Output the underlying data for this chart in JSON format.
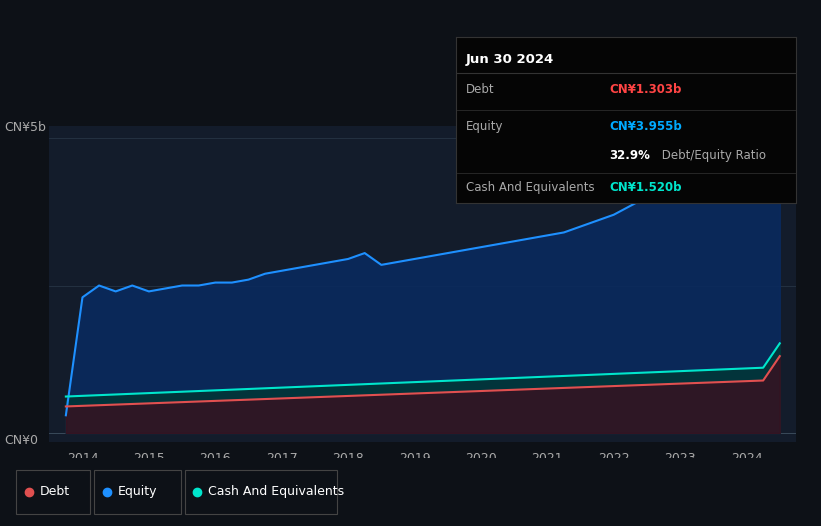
{
  "bg_color": "#0d1117",
  "plot_bg_color": "#131c2b",
  "title": "Jun 30 2024",
  "tooltip": {
    "debt_label": "Debt",
    "debt_value": "CN¥1.303b",
    "debt_color": "#ff4444",
    "equity_label": "Equity",
    "equity_value": "CN¥3.955b",
    "equity_color": "#00aaff",
    "ratio_value": "32.9%",
    "ratio_label": " Debt/Equity Ratio",
    "cash_label": "Cash And Equivalents",
    "cash_value": "CN¥1.520b",
    "cash_color": "#00e5cc"
  },
  "ylabel_top": "CN¥5b",
  "ylabel_bottom": "CN¥0",
  "equity_color": "#1e90ff",
  "equity_fill": "#0a2a5e",
  "debt_color": "#e05050",
  "debt_fill": "#3a1020",
  "cash_color": "#00e5cc",
  "cash_fill": "#003a30",
  "legend": [
    "Debt",
    "Equity",
    "Cash And Equivalents"
  ],
  "legend_colors": [
    "#e05050",
    "#1e90ff",
    "#00e5cc"
  ],
  "years": [
    2014,
    2015,
    2016,
    2017,
    2018,
    2019,
    2020,
    2021,
    2022,
    2023,
    2024
  ],
  "equity_data": [
    0.3,
    2.3,
    2.5,
    2.4,
    2.5,
    2.4,
    2.45,
    2.5,
    2.5,
    2.55,
    2.55,
    2.6,
    2.7,
    2.75,
    2.8,
    2.85,
    2.9,
    2.95,
    3.05,
    2.85,
    2.9,
    2.95,
    3.0,
    3.05,
    3.1,
    3.15,
    3.2,
    3.25,
    3.3,
    3.35,
    3.4,
    3.5,
    3.6,
    3.7,
    3.85,
    4.0,
    4.2,
    4.4,
    4.6,
    4.8,
    5.0,
    5.1,
    5.0,
    3.955
  ]
}
